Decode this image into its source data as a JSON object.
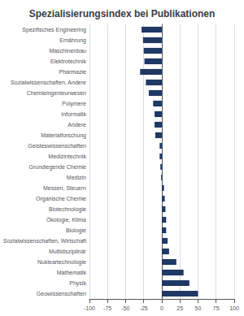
{
  "chart_data": {
    "type": "bar",
    "title": "Spezialisierungsindex bei Publikationen",
    "orientation": "horizontal",
    "categories": [
      "Spezifisches Engineering",
      "Ernährung",
      "Maschinenbau",
      "Elektrotechnik",
      "Pharmazie",
      "Sozialwissenschaften, Andere",
      "Chemieingenieurwesen",
      "Polymere",
      "Informatik",
      "Andere",
      "Materialforschung",
      "Geisteswissenschaften",
      "Medizintechnik",
      "Grundlegende Chemie",
      "Medizin",
      "Messen, Steuern",
      "Organische Chemie",
      "Biotechnologie",
      "Ökologie, Klima",
      "Biologie",
      "Sozialwissenschaften, Wirtschaft",
      "Multidisziplinär",
      "Nukleartechnologie",
      "Mathematik",
      "Physik",
      "Geowissenschaften"
    ],
    "values": [
      -28,
      -26,
      -25,
      -24,
      -30,
      -22,
      -18,
      -12,
      -10,
      -10,
      -9,
      -3,
      -3,
      -2,
      -1,
      3,
      4,
      5,
      6,
      6,
      8,
      10,
      20,
      30,
      38,
      50
    ],
    "color": "#1f3864",
    "xlim": [
      -100,
      100
    ],
    "xticks": [
      -100,
      -75,
      -50,
      -25,
      0,
      25,
      50,
      75,
      100
    ],
    "grid": true
  }
}
